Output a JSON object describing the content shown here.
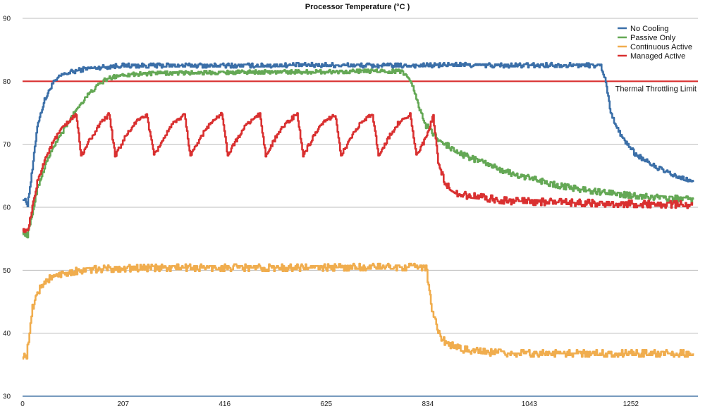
{
  "chart_data": {
    "type": "line",
    "title": "Processor Temperature (°C )",
    "xlabel": "",
    "ylabel": "",
    "xlim": [
      0,
      1390
    ],
    "ylim": [
      30,
      90
    ],
    "x_ticks": [
      0,
      207,
      416,
      625,
      834,
      1043,
      1252
    ],
    "x_tick_labels": [
      "0",
      "207",
      "416",
      "625",
      "834",
      "1043",
      "1252"
    ],
    "y_ticks": [
      30,
      40,
      50,
      60,
      70,
      80,
      90
    ],
    "y_tick_labels": [
      "30",
      "40",
      "50",
      "60",
      "70",
      "80",
      "90"
    ],
    "grid": "horizontal",
    "legend_position": "top-right",
    "reference_line": {
      "y": 80,
      "label": "Thermal Throttling Limit",
      "color": "#d93030"
    },
    "series": [
      {
        "name": "No Cooling",
        "color": "#3b6fa8",
        "x": [
          0,
          10,
          20,
          30,
          45,
          60,
          80,
          100,
          130,
          160,
          200,
          300,
          400,
          500,
          600,
          700,
          800,
          900,
          1000,
          1100,
          1190,
          1200,
          1210,
          1230,
          1260,
          1300,
          1340,
          1380
        ],
        "values": [
          61.5,
          60.5,
          66,
          73,
          77,
          79.5,
          81,
          81.5,
          82,
          82.2,
          82.5,
          82.5,
          82.5,
          82.5,
          82.6,
          82.5,
          82.5,
          82.6,
          82.5,
          82.6,
          82.5,
          80,
          75,
          71.5,
          68.5,
          66.5,
          65,
          64
        ]
      },
      {
        "name": "Passive Only",
        "color": "#64a855",
        "x": [
          0,
          10,
          20,
          30,
          50,
          70,
          90,
          110,
          130,
          150,
          170,
          200,
          250,
          300,
          400,
          500,
          600,
          700,
          780,
          800,
          815,
          830,
          860,
          900,
          950,
          1000,
          1050,
          1100,
          1150,
          1200,
          1250,
          1300,
          1350,
          1380
        ],
        "values": [
          56,
          55.5,
          59,
          63,
          67.5,
          70.5,
          73,
          75.5,
          77.5,
          79,
          80.3,
          81,
          81.2,
          81.3,
          81.4,
          81.5,
          81.5,
          81.6,
          81.6,
          80,
          76,
          73,
          70.5,
          68.5,
          67,
          65.5,
          64.5,
          63.5,
          62.8,
          62.3,
          61.9,
          61.6,
          61.4,
          61.2
        ]
      },
      {
        "name": "Continuous Active",
        "color": "#f0ad4e",
        "x": [
          0,
          8,
          14,
          20,
          30,
          50,
          80,
          120,
          160,
          200,
          300,
          400,
          500,
          600,
          700,
          790,
          830,
          842,
          855,
          870,
          900,
          950,
          1000,
          1100,
          1200,
          1300,
          1380
        ],
        "values": [
          36.5,
          36.5,
          40,
          44,
          46.5,
          48.5,
          49.5,
          50,
          50.2,
          50.3,
          50.4,
          50.4,
          50.4,
          50.4,
          50.5,
          50.5,
          50.5,
          44,
          40,
          38.5,
          37.5,
          37,
          36.8,
          36.8,
          36.8,
          36.8,
          36.8
        ]
      },
      {
        "name": "Managed Active",
        "color": "#d93030",
        "x": [
          0,
          10,
          20,
          30,
          45,
          60,
          80,
          100,
          110,
          120,
          140,
          160,
          178,
          190,
          210,
          230,
          255,
          270,
          290,
          310,
          333,
          345,
          365,
          385,
          410,
          422,
          442,
          462,
          488,
          500,
          520,
          540,
          565,
          577,
          597,
          617,
          643,
          655,
          675,
          695,
          720,
          732,
          752,
          772,
          797,
          810,
          830,
          845,
          855,
          870,
          900,
          950,
          1000,
          1100,
          1200,
          1300,
          1380
        ],
        "values": [
          56.5,
          56,
          60,
          64,
          67.5,
          70,
          72.5,
          74,
          74.8,
          68.2,
          71,
          73.3,
          74.8,
          68.2,
          71,
          73.3,
          74.8,
          68.2,
          71,
          73.3,
          74.8,
          68.2,
          71,
          73.3,
          74.8,
          68.2,
          71,
          73.3,
          74.8,
          68.2,
          71,
          73.3,
          74.8,
          68.2,
          71,
          73.3,
          74.8,
          68.2,
          71,
          73.3,
          74.8,
          68.2,
          71,
          73.3,
          74.8,
          68.2,
          71,
          74.5,
          67,
          63.5,
          62,
          61.5,
          61,
          60.8,
          60.6,
          60.5,
          60.4
        ]
      }
    ]
  }
}
